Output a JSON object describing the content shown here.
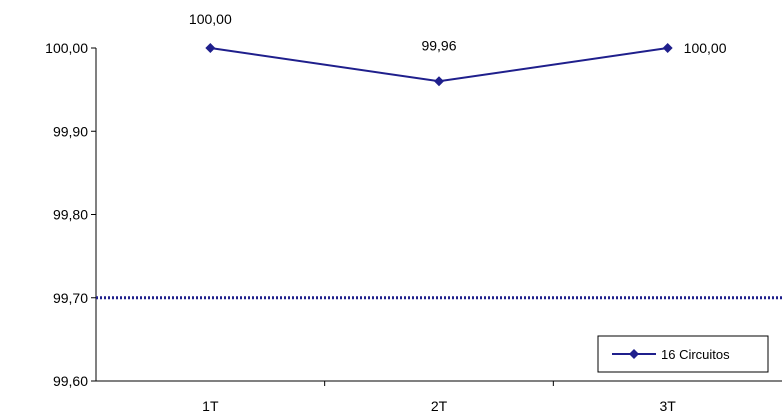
{
  "chart_data": {
    "type": "line",
    "categories": [
      "1T",
      "2T",
      "3T"
    ],
    "series": [
      {
        "name": "16 Circuitos",
        "values": [
          100.0,
          99.96,
          100.0
        ],
        "color": "#1F1F8C"
      }
    ],
    "data_labels": [
      "100,00",
      "99,96",
      "100,00"
    ],
    "y_ticks": [
      {
        "value": 100.0,
        "label": "100,00"
      },
      {
        "value": 99.9,
        "label": "99,90"
      },
      {
        "value": 99.8,
        "label": "99,80"
      },
      {
        "value": 99.7,
        "label": "99,70"
      },
      {
        "value": 99.6,
        "label": "99,60"
      }
    ],
    "ylim": [
      99.6,
      100.0
    ],
    "reference_line": {
      "value": 99.7,
      "style": "dotted",
      "color": "#1F1F8C"
    },
    "grid": false,
    "legend_position": "bottom-right",
    "marker": "diamond"
  }
}
